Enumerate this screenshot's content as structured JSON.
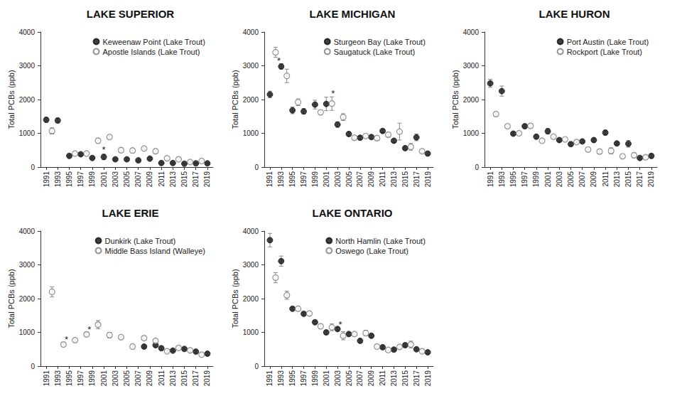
{
  "chart_data": [
    {
      "type": "scatter",
      "title": "LAKE SUPERIOR",
      "ylabel": "Total PCBs (ppb)",
      "x": [
        1991,
        1992,
        1993,
        1994,
        1995,
        1996,
        1997,
        1998,
        1999,
        2000,
        2001,
        2002,
        2003,
        2004,
        2005,
        2006,
        2007,
        2008,
        2009,
        2010,
        2011,
        2012,
        2013,
        2014,
        2015,
        2016,
        2017,
        2018,
        2019
      ],
      "xlim": [
        1990,
        2020
      ],
      "xticks": [
        1991,
        1993,
        1995,
        1997,
        1999,
        2001,
        2003,
        2005,
        2007,
        2009,
        2011,
        2013,
        2015,
        2017,
        2019
      ],
      "ylim": [
        0,
        4000
      ],
      "yticks": [
        0,
        1000,
        2000,
        3000,
        4000
      ],
      "grid": false,
      "legend": "upper right",
      "series": [
        {
          "name": "Keweenaw Point (Lake Trout)",
          "color": "#111111",
          "marker": "filled",
          "values": [
            1400,
            null,
            1380,
            null,
            330,
            null,
            380,
            null,
            270,
            null,
            300,
            null,
            230,
            null,
            230,
            null,
            200,
            null,
            250,
            null,
            120,
            null,
            120,
            null,
            100,
            null,
            110,
            null,
            110
          ],
          "errors": [
            70,
            null,
            70,
            null,
            30,
            null,
            30,
            null,
            30,
            null,
            80,
            null,
            30,
            null,
            30,
            null,
            30,
            null,
            30,
            null,
            30,
            null,
            30,
            null,
            20,
            null,
            20,
            null,
            20
          ]
        },
        {
          "name": "Apostle Islands (Lake Trout)",
          "color": "#777777",
          "marker": "open",
          "values": [
            null,
            1070,
            null,
            null,
            null,
            400,
            null,
            400,
            null,
            780,
            null,
            890,
            null,
            500,
            null,
            490,
            null,
            550,
            null,
            470,
            null,
            260,
            null,
            230,
            null,
            150,
            null,
            180,
            null
          ],
          "errors": [
            null,
            90,
            null,
            null,
            null,
            40,
            null,
            40,
            null,
            70,
            null,
            50,
            null,
            70,
            null,
            60,
            null,
            40,
            null,
            50,
            null,
            40,
            null,
            40,
            null,
            30,
            null,
            30,
            null
          ]
        }
      ],
      "annotations": [
        {
          "x": 2001,
          "y": 520,
          "text": "*"
        }
      ]
    },
    {
      "type": "scatter",
      "title": "LAKE MICHIGAN",
      "ylabel": "Total PCBs (ppb)",
      "x": [
        1991,
        1992,
        1993,
        1994,
        1995,
        1996,
        1997,
        1998,
        1999,
        2000,
        2001,
        2002,
        2003,
        2004,
        2005,
        2006,
        2007,
        2008,
        2009,
        2010,
        2011,
        2012,
        2013,
        2014,
        2015,
        2016,
        2017,
        2018,
        2019
      ],
      "xlim": [
        1990,
        2020
      ],
      "xticks": [
        1991,
        1993,
        1995,
        1997,
        1999,
        2001,
        2003,
        2005,
        2007,
        2009,
        2011,
        2013,
        2015,
        2017,
        2019
      ],
      "ylim": [
        0,
        4000
      ],
      "yticks": [
        0,
        1000,
        2000,
        3000,
        4000
      ],
      "grid": false,
      "legend": "upper right",
      "series": [
        {
          "name": "Sturgeon Bay (Lake Trout)",
          "color": "#111111",
          "marker": "filled",
          "values": [
            2150,
            null,
            2980,
            null,
            1680,
            null,
            1650,
            null,
            1850,
            null,
            1870,
            null,
            1260,
            null,
            980,
            null,
            870,
            null,
            890,
            null,
            1070,
            null,
            780,
            null,
            560,
            null,
            880,
            null,
            400
          ],
          "errors": [
            100,
            null,
            80,
            null,
            100,
            null,
            80,
            null,
            130,
            null,
            200,
            null,
            80,
            null,
            60,
            null,
            50,
            null,
            50,
            null,
            50,
            null,
            50,
            null,
            40,
            null,
            100,
            null,
            40
          ]
        },
        {
          "name": "Saugatuck (Lake Trout)",
          "color": "#777777",
          "marker": "open",
          "values": [
            null,
            3400,
            null,
            2700,
            null,
            1920,
            null,
            null,
            null,
            1620,
            null,
            1880,
            null,
            1480,
            null,
            870,
            null,
            920,
            null,
            860,
            null,
            960,
            null,
            1050,
            null,
            600,
            null,
            470,
            null
          ],
          "errors": [
            null,
            150,
            null,
            200,
            null,
            100,
            null,
            null,
            null,
            60,
            null,
            200,
            null,
            100,
            null,
            40,
            null,
            40,
            null,
            60,
            null,
            60,
            null,
            250,
            null,
            100,
            null,
            40,
            null
          ]
        }
      ],
      "annotations": [
        {
          "x": 1992.6,
          "y": 3150,
          "text": "*"
        },
        {
          "x": 2002.2,
          "y": 2170,
          "text": "*"
        }
      ]
    },
    {
      "type": "scatter",
      "title": "LAKE HURON",
      "ylabel": "Total PCBs (ppb)",
      "x": [
        1991,
        1992,
        1993,
        1994,
        1995,
        1996,
        1997,
        1998,
        1999,
        2000,
        2001,
        2002,
        2003,
        2004,
        2005,
        2006,
        2007,
        2008,
        2009,
        2010,
        2011,
        2012,
        2013,
        2014,
        2015,
        2016,
        2017,
        2018,
        2019
      ],
      "xlim": [
        1990,
        2020
      ],
      "xticks": [
        1991,
        1993,
        1995,
        1997,
        1999,
        2001,
        2003,
        2005,
        2007,
        2009,
        2011,
        2013,
        2015,
        2017,
        2019
      ],
      "ylim": [
        0,
        4000
      ],
      "yticks": [
        0,
        1000,
        2000,
        3000,
        4000
      ],
      "grid": false,
      "legend": "upper right",
      "series": [
        {
          "name": "Port Austin (Lake Trout)",
          "color": "#111111",
          "marker": "filled",
          "values": [
            2480,
            null,
            2250,
            null,
            990,
            null,
            1210,
            null,
            900,
            null,
            1060,
            null,
            800,
            null,
            680,
            null,
            760,
            null,
            800,
            null,
            1020,
            null,
            700,
            null,
            690,
            null,
            270,
            null,
            330
          ],
          "errors": [
            120,
            null,
            150,
            null,
            40,
            null,
            50,
            null,
            50,
            null,
            80,
            null,
            40,
            null,
            40,
            null,
            40,
            null,
            50,
            null,
            70,
            null,
            40,
            null,
            100,
            null,
            30,
            null,
            60
          ]
        },
        {
          "name": "Rockport (Lake Trout)",
          "color": "#777777",
          "marker": "open",
          "values": [
            null,
            1570,
            null,
            1210,
            null,
            1000,
            null,
            1220,
            null,
            780,
            null,
            900,
            null,
            820,
            null,
            740,
            null,
            520,
            null,
            460,
            null,
            480,
            null,
            320,
            null,
            350,
            null,
            290,
            null
          ],
          "errors": [
            null,
            50,
            null,
            50,
            null,
            40,
            null,
            60,
            null,
            50,
            null,
            40,
            null,
            40,
            null,
            40,
            null,
            60,
            null,
            60,
            null,
            90,
            null,
            50,
            null,
            70,
            null,
            50,
            null
          ]
        }
      ]
    },
    {
      "type": "scatter",
      "title": "LAKE ERIE",
      "ylabel": "Total PCBs (ppb)",
      "x": [
        1991,
        1992,
        1993,
        1994,
        1995,
        1996,
        1997,
        1998,
        1999,
        2000,
        2001,
        2002,
        2003,
        2004,
        2005,
        2006,
        2007,
        2008,
        2009,
        2010,
        2011,
        2012,
        2013,
        2014,
        2015,
        2016,
        2017,
        2018,
        2019
      ],
      "xlim": [
        1990,
        2020
      ],
      "xticks": [
        1991,
        1993,
        1995,
        1997,
        1999,
        2001,
        2003,
        2005,
        2007,
        2009,
        2011,
        2013,
        2015,
        2017,
        2019
      ],
      "ylim": [
        0,
        4000
      ],
      "yticks": [
        0,
        1000,
        2000,
        3000,
        4000
      ],
      "grid": false,
      "legend": "upper right",
      "series": [
        {
          "name": "Dunkirk (Lake Trout)",
          "color": "#111111",
          "marker": "filled",
          "values": [
            null,
            null,
            null,
            null,
            null,
            null,
            null,
            null,
            null,
            null,
            null,
            null,
            null,
            null,
            null,
            null,
            null,
            580,
            null,
            620,
            530,
            null,
            460,
            null,
            510,
            null,
            430,
            null,
            370
          ],
          "errors": [
            null,
            null,
            null,
            null,
            null,
            null,
            null,
            null,
            null,
            null,
            null,
            null,
            null,
            null,
            null,
            null,
            null,
            40,
            null,
            50,
            40,
            null,
            30,
            null,
            30,
            null,
            40,
            null,
            40
          ]
        },
        {
          "name": "Middle Bass Island (Walleye)",
          "color": "#777777",
          "marker": "open",
          "values": [
            null,
            2200,
            null,
            640,
            null,
            770,
            null,
            940,
            null,
            1230,
            null,
            920,
            null,
            860,
            null,
            580,
            null,
            830,
            null,
            750,
            null,
            440,
            null,
            540,
            null,
            470,
            null,
            340,
            null
          ],
          "errors": [
            null,
            150,
            null,
            50,
            null,
            40,
            null,
            60,
            null,
            120,
            null,
            80,
            null,
            30,
            null,
            50,
            null,
            50,
            null,
            50,
            null,
            30,
            null,
            30,
            null,
            40,
            null,
            40,
            null
          ]
        }
      ],
      "annotations": [
        {
          "x": 1994.5,
          "y": 800,
          "text": "*"
        },
        {
          "x": 1998.5,
          "y": 1080,
          "text": "*"
        }
      ]
    },
    {
      "type": "scatter",
      "title": "LAKE ONTARIO",
      "ylabel": "Total PCBs (ppb)",
      "x": [
        1991,
        1992,
        1993,
        1994,
        1995,
        1996,
        1997,
        1998,
        1999,
        2000,
        2001,
        2002,
        2003,
        2004,
        2005,
        2006,
        2007,
        2008,
        2009,
        2010,
        2011,
        2012,
        2013,
        2014,
        2015,
        2016,
        2017,
        2018,
        2019
      ],
      "xlim": [
        1990,
        2020
      ],
      "xticks": [
        1991,
        1993,
        1995,
        1997,
        1999,
        2001,
        2003,
        2005,
        2007,
        2009,
        2011,
        2013,
        2015,
        2017,
        2019
      ],
      "ylim": [
        0,
        4000
      ],
      "yticks": [
        0,
        1000,
        2000,
        3000,
        4000
      ],
      "grid": false,
      "legend": "upper right",
      "series": [
        {
          "name": "North Hamlin (Lake Trout)",
          "color": "#111111",
          "marker": "filled",
          "values": [
            3730,
            null,
            3110,
            null,
            1700,
            null,
            1550,
            null,
            1300,
            null,
            1000,
            null,
            1100,
            null,
            950,
            null,
            750,
            null,
            900,
            null,
            560,
            null,
            490,
            null,
            620,
            null,
            500,
            null,
            410
          ],
          "errors": [
            200,
            null,
            150,
            null,
            40,
            null,
            40,
            null,
            40,
            null,
            50,
            null,
            50,
            null,
            40,
            null,
            50,
            null,
            50,
            null,
            40,
            null,
            30,
            null,
            50,
            null,
            40,
            null,
            40
          ]
        },
        {
          "name": "Oswego (Lake Trout)",
          "color": "#777777",
          "marker": "open",
          "values": [
            null,
            2620,
            null,
            2100,
            null,
            1700,
            null,
            1560,
            null,
            1180,
            null,
            1150,
            null,
            900,
            null,
            950,
            null,
            980,
            null,
            580,
            null,
            480,
            null,
            570,
            null,
            640,
            null,
            440,
            null
          ],
          "errors": [
            null,
            150,
            null,
            120,
            null,
            60,
            null,
            60,
            null,
            60,
            null,
            100,
            null,
            120,
            null,
            50,
            null,
            80,
            null,
            50,
            null,
            30,
            null,
            40,
            null,
            100,
            null,
            40,
            null
          ]
        }
      ],
      "annotations": [
        {
          "x": 2003.5,
          "y": 1230,
          "text": "*"
        }
      ]
    }
  ]
}
